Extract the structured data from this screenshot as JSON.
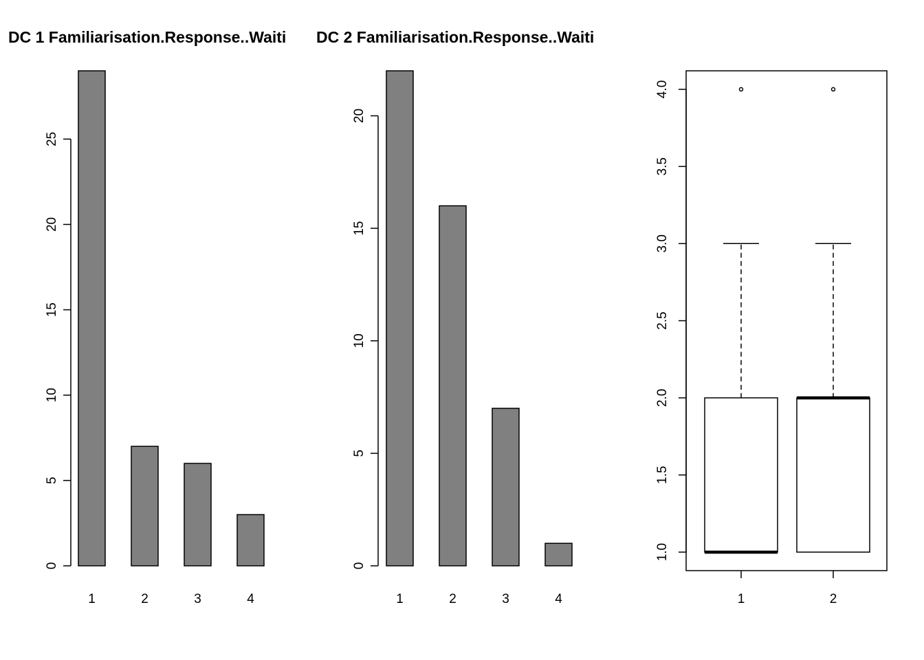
{
  "chart_data": [
    {
      "type": "bar",
      "title": "DC 1 Familiarisation.Response..Waiti",
      "categories": [
        "1",
        "2",
        "3",
        "4"
      ],
      "values": [
        29,
        7,
        6,
        3
      ],
      "yticks": [
        "0",
        "5",
        "10",
        "15",
        "20",
        "25"
      ],
      "ylim": [
        0,
        29
      ],
      "bar_color": "#808080",
      "grid": false
    },
    {
      "type": "bar",
      "title": "DC 2 Familiarisation.Response..Waiti",
      "categories": [
        "1",
        "2",
        "3",
        "4"
      ],
      "values": [
        22,
        16,
        7,
        1
      ],
      "yticks": [
        "0",
        "5",
        "10",
        "15",
        "20"
      ],
      "ylim": [
        0,
        22
      ],
      "bar_color": "#808080",
      "grid": false
    },
    {
      "type": "box",
      "categories": [
        "1",
        "2"
      ],
      "boxes": [
        {
          "min": 1,
          "q1": 1,
          "median": 1,
          "q3": 2,
          "max": 3,
          "outliers": [
            4
          ]
        },
        {
          "min": 1,
          "q1": 1,
          "median": 2,
          "q3": 2,
          "max": 3,
          "outliers": [
            4
          ]
        }
      ],
      "yticks": [
        "1.0",
        "1.5",
        "2.0",
        "2.5",
        "3.0",
        "3.5",
        "4.0"
      ],
      "ylim": [
        0.88,
        4.12
      ],
      "grid": false
    }
  ]
}
